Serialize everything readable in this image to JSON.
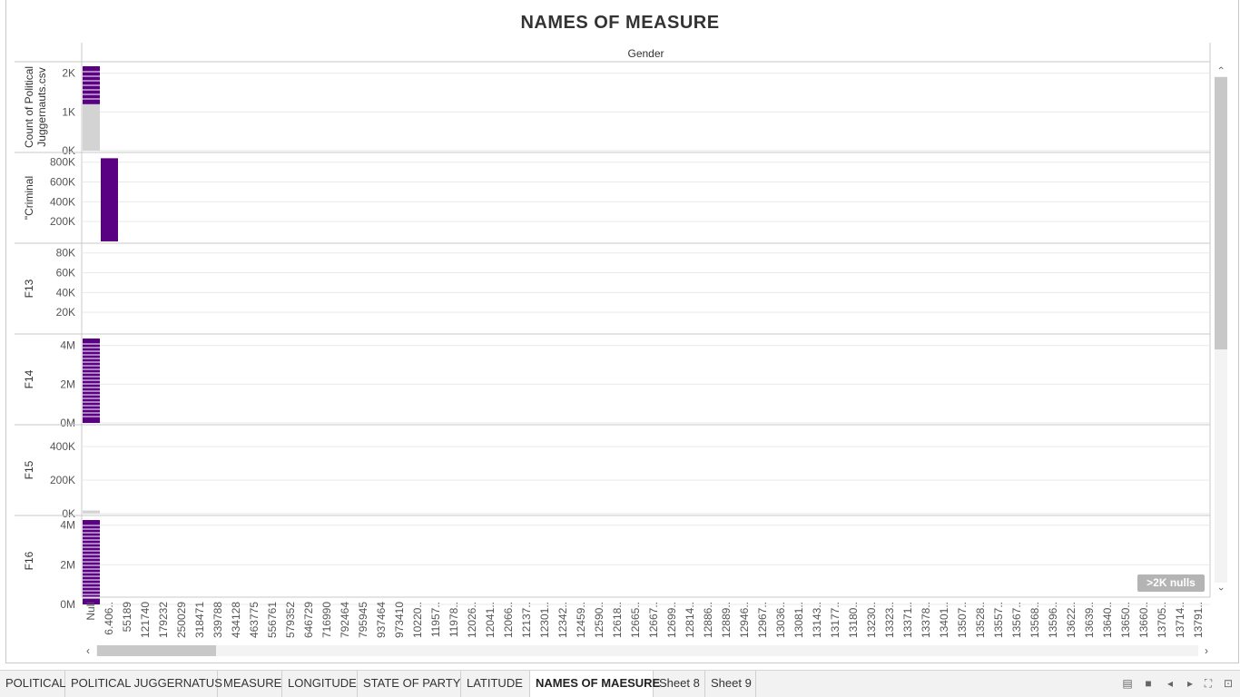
{
  "title": "NAMES OF MEASURE",
  "chart_data": {
    "type": "bar",
    "column_header": "Gender",
    "x_categories": [
      "Null",
      "6.406..",
      "55189",
      "121740",
      "179232",
      "250029",
      "318471",
      "339788",
      "434128",
      "463775",
      "556761",
      "579352",
      "646729",
      "716990",
      "792464",
      "795945",
      "937464",
      "973410",
      "10220..",
      "11957..",
      "11978..",
      "12026..",
      "12041..",
      "12066..",
      "12137..",
      "12301..",
      "12342..",
      "12459..",
      "12590..",
      "12618..",
      "12665..",
      "12667..",
      "12699..",
      "12814..",
      "12886..",
      "12889..",
      "12946..",
      "12967..",
      "13036..",
      "13081..",
      "13143..",
      "13177..",
      "13180..",
      "13230..",
      "13323..",
      "13371..",
      "13378..",
      "13401..",
      "13507..",
      "13528..",
      "13557..",
      "13567..",
      "13568..",
      "13596..",
      "13622..",
      "13639..",
      "13640..",
      "13650..",
      "13660..",
      "13705..",
      "13714..",
      "13791.."
    ],
    "panels": [
      {
        "measure": "Count of Political Juggernauts.csv",
        "ticks": [
          "2K",
          "1K",
          "0K"
        ],
        "tick_values": [
          2000,
          1000,
          0
        ],
        "ylim": [
          0,
          2250
        ],
        "bars": [
          {
            "category": "Null",
            "value": 2200,
            "color_value": 1200
          }
        ]
      },
      {
        "measure": "\"Criminal",
        "ticks": [
          "800K",
          "600K",
          "400K",
          "200K"
        ],
        "tick_values": [
          800000,
          600000,
          400000,
          200000
        ],
        "ylim": [
          0,
          880000
        ],
        "bars": [
          {
            "category": "6.406..",
            "value": 840000
          }
        ]
      },
      {
        "measure": "F13",
        "ticks": [
          "80K",
          "60K",
          "40K",
          "20K"
        ],
        "tick_values": [
          80000,
          60000,
          40000,
          20000
        ],
        "ylim": [
          0,
          88000
        ],
        "bars": []
      },
      {
        "measure": "F14",
        "ticks": [
          "4M",
          "2M",
          "0M"
        ],
        "tick_values": [
          4000000,
          2000000,
          0
        ],
        "ylim": [
          0,
          4500000
        ],
        "bars": [
          {
            "category": "Null",
            "value": 4400000
          }
        ]
      },
      {
        "measure": "F15",
        "ticks": [
          "400K",
          "200K",
          "0K"
        ],
        "tick_values": [
          400000,
          200000,
          0
        ],
        "ylim": [
          0,
          520000
        ],
        "bars": [
          {
            "category": "Null",
            "value": 8000
          }
        ]
      },
      {
        "measure": "F16",
        "ticks": [
          "4M",
          "2M",
          "0M"
        ],
        "tick_values": [
          4000000,
          2000000,
          0
        ],
        "ylim": [
          0,
          4400000
        ],
        "bars": [
          {
            "category": "Null",
            "value": 4300000
          }
        ]
      }
    ],
    "grid": true,
    "null_indicator": ">2K nulls"
  },
  "colors": {
    "bar": "#5a0083",
    "bar_light": "#d3d3d3",
    "grid": "#e9e9e9",
    "divider": "#c8c8c8"
  },
  "scroll": {
    "left": "‹",
    "right": "›",
    "up": "‹",
    "down": "›"
  },
  "tabs": [
    "POLITICAL",
    "POLITICAL JUGGERNATUS",
    "MEASURE",
    "LONGITUDE",
    "STATE OF PARTY",
    "LATITUDE",
    "NAMES OF MAESURE",
    "Sheet 8",
    "Sheet 9"
  ],
  "active_tab": "NAMES OF MAESURE",
  "controls": {
    "icons": [
      "filmstrip-icon",
      "sheet-icon",
      "prev-icon",
      "next-icon",
      "fullscreen-icon",
      "presentation-icon"
    ]
  }
}
